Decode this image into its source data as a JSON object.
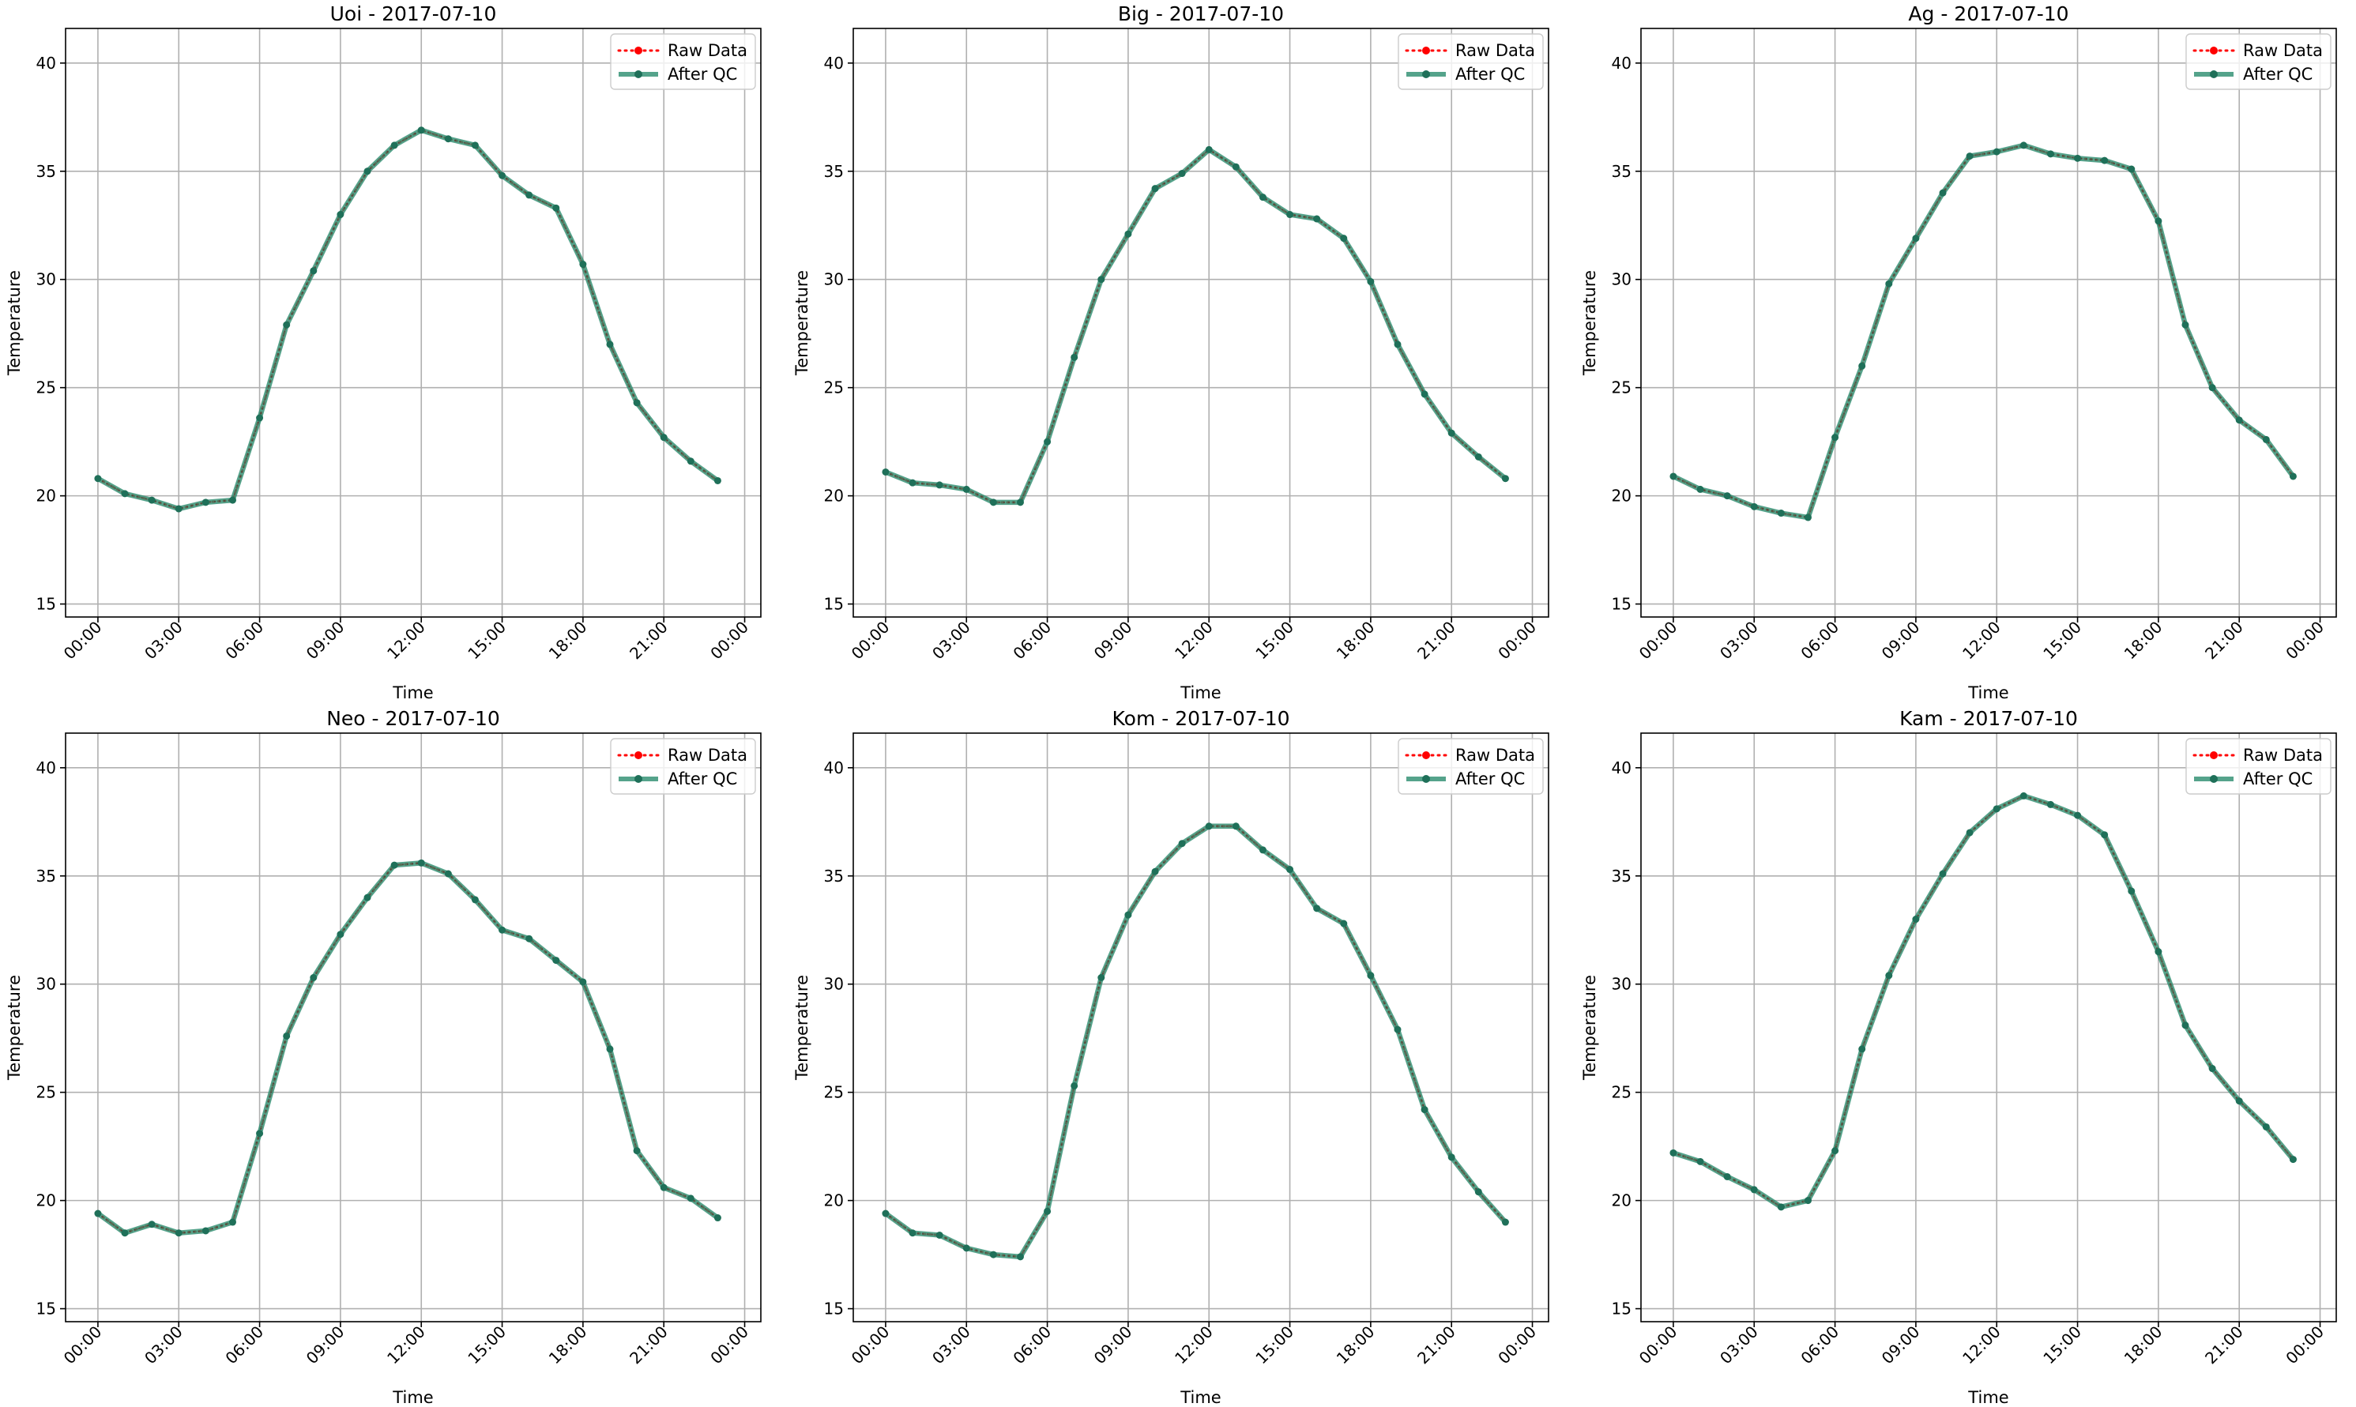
{
  "chart_data": [
    {
      "type": "line",
      "title": "Uoi - 2017-07-10",
      "xlabel": "Time",
      "ylabel": "Temperature",
      "x_tick_labels": [
        "00:00",
        "03:00",
        "06:00",
        "09:00",
        "12:00",
        "15:00",
        "18:00",
        "21:00",
        "00:00"
      ],
      "y_ticks": [
        15,
        20,
        25,
        30,
        35,
        40
      ],
      "ylim": [
        14.4,
        41.6
      ],
      "grid": true,
      "legend_position": "top-right",
      "x": [
        "00:00",
        "01:00",
        "02:00",
        "03:00",
        "04:00",
        "05:00",
        "06:00",
        "07:00",
        "08:00",
        "09:00",
        "10:00",
        "11:00",
        "12:00",
        "13:00",
        "14:00",
        "15:00",
        "16:00",
        "17:00",
        "18:00",
        "19:00",
        "20:00",
        "21:00",
        "22:00",
        "23:00"
      ],
      "series": [
        {
          "name": "Raw Data",
          "color": "#ff0000",
          "values": [
            20.8,
            20.1,
            19.8,
            19.4,
            19.7,
            19.8,
            23.6,
            27.9,
            30.4,
            33.0,
            35.0,
            36.2,
            36.9,
            36.5,
            36.2,
            34.8,
            33.9,
            33.3,
            30.7,
            27.0,
            24.3,
            22.7,
            21.6,
            20.7
          ]
        },
        {
          "name": "After QC",
          "color": "#2b8c6e",
          "values": [
            20.8,
            20.1,
            19.8,
            19.4,
            19.7,
            19.8,
            23.6,
            27.9,
            30.4,
            33.0,
            35.0,
            36.2,
            36.9,
            36.5,
            36.2,
            34.8,
            33.9,
            33.3,
            30.7,
            27.0,
            24.3,
            22.7,
            21.6,
            20.7
          ]
        }
      ]
    },
    {
      "type": "line",
      "title": "Big - 2017-07-10",
      "xlabel": "Time",
      "ylabel": "Temperature",
      "x_tick_labels": [
        "00:00",
        "03:00",
        "06:00",
        "09:00",
        "12:00",
        "15:00",
        "18:00",
        "21:00",
        "00:00"
      ],
      "y_ticks": [
        15,
        20,
        25,
        30,
        35,
        40
      ],
      "ylim": [
        14.4,
        41.6
      ],
      "grid": true,
      "legend_position": "top-right",
      "x": [
        "00:00",
        "01:00",
        "02:00",
        "03:00",
        "04:00",
        "05:00",
        "06:00",
        "07:00",
        "08:00",
        "09:00",
        "10:00",
        "11:00",
        "12:00",
        "13:00",
        "14:00",
        "15:00",
        "16:00",
        "17:00",
        "18:00",
        "19:00",
        "20:00",
        "21:00",
        "22:00",
        "23:00"
      ],
      "series": [
        {
          "name": "Raw Data",
          "color": "#ff0000",
          "values": [
            21.1,
            20.6,
            20.5,
            20.3,
            19.7,
            19.7,
            22.5,
            26.4,
            30.0,
            32.1,
            34.2,
            34.9,
            36.0,
            35.2,
            33.8,
            33.0,
            32.8,
            31.9,
            29.9,
            27.0,
            24.7,
            22.9,
            21.8,
            20.8
          ]
        },
        {
          "name": "After QC",
          "color": "#2b8c6e",
          "values": [
            21.1,
            20.6,
            20.5,
            20.3,
            19.7,
            19.7,
            22.5,
            26.4,
            30.0,
            32.1,
            34.2,
            34.9,
            36.0,
            35.2,
            33.8,
            33.0,
            32.8,
            31.9,
            29.9,
            27.0,
            24.7,
            22.9,
            21.8,
            20.8
          ]
        }
      ]
    },
    {
      "type": "line",
      "title": "Ag - 2017-07-10",
      "xlabel": "Time",
      "ylabel": "Temperature",
      "x_tick_labels": [
        "00:00",
        "03:00",
        "06:00",
        "09:00",
        "12:00",
        "15:00",
        "18:00",
        "21:00",
        "00:00"
      ],
      "y_ticks": [
        15,
        20,
        25,
        30,
        35,
        40
      ],
      "ylim": [
        14.4,
        41.6
      ],
      "grid": true,
      "legend_position": "top-right",
      "x": [
        "00:00",
        "01:00",
        "02:00",
        "03:00",
        "04:00",
        "05:00",
        "06:00",
        "07:00",
        "08:00",
        "09:00",
        "10:00",
        "11:00",
        "12:00",
        "13:00",
        "14:00",
        "15:00",
        "16:00",
        "17:00",
        "18:00",
        "19:00",
        "20:00",
        "21:00",
        "22:00",
        "23:00"
      ],
      "series": [
        {
          "name": "Raw Data",
          "color": "#ff0000",
          "values": [
            20.9,
            20.3,
            20.0,
            19.5,
            19.2,
            19.0,
            22.7,
            26.0,
            29.8,
            31.9,
            34.0,
            35.7,
            35.9,
            36.2,
            35.8,
            35.6,
            35.5,
            35.1,
            32.7,
            27.9,
            25.0,
            23.5,
            22.6,
            20.9
          ]
        },
        {
          "name": "After QC",
          "color": "#2b8c6e",
          "values": [
            20.9,
            20.3,
            20.0,
            19.5,
            19.2,
            19.0,
            22.7,
            26.0,
            29.8,
            31.9,
            34.0,
            35.7,
            35.9,
            36.2,
            35.8,
            35.6,
            35.5,
            35.1,
            32.7,
            27.9,
            25.0,
            23.5,
            22.6,
            20.9
          ]
        }
      ]
    },
    {
      "type": "line",
      "title": "Neo - 2017-07-10",
      "xlabel": "Time",
      "ylabel": "Temperature",
      "x_tick_labels": [
        "00:00",
        "03:00",
        "06:00",
        "09:00",
        "12:00",
        "15:00",
        "18:00",
        "21:00",
        "00:00"
      ],
      "y_ticks": [
        15,
        20,
        25,
        30,
        35,
        40
      ],
      "ylim": [
        14.4,
        41.6
      ],
      "grid": true,
      "legend_position": "top-right",
      "x": [
        "00:00",
        "01:00",
        "02:00",
        "03:00",
        "04:00",
        "05:00",
        "06:00",
        "07:00",
        "08:00",
        "09:00",
        "10:00",
        "11:00",
        "12:00",
        "13:00",
        "14:00",
        "15:00",
        "16:00",
        "17:00",
        "18:00",
        "19:00",
        "20:00",
        "21:00",
        "22:00",
        "23:00"
      ],
      "series": [
        {
          "name": "Raw Data",
          "color": "#ff0000",
          "values": [
            19.4,
            18.5,
            18.9,
            18.5,
            18.6,
            19.0,
            23.1,
            27.6,
            30.3,
            32.3,
            34.0,
            35.5,
            35.6,
            35.1,
            33.9,
            32.5,
            32.1,
            31.1,
            30.1,
            27.0,
            22.3,
            20.6,
            20.1,
            19.2
          ]
        },
        {
          "name": "After QC",
          "color": "#2b8c6e",
          "values": [
            19.4,
            18.5,
            18.9,
            18.5,
            18.6,
            19.0,
            23.1,
            27.6,
            30.3,
            32.3,
            34.0,
            35.5,
            35.6,
            35.1,
            33.9,
            32.5,
            32.1,
            31.1,
            30.1,
            27.0,
            22.3,
            20.6,
            20.1,
            19.2
          ]
        }
      ]
    },
    {
      "type": "line",
      "title": "Kom - 2017-07-10",
      "xlabel": "Time",
      "ylabel": "Temperature",
      "x_tick_labels": [
        "00:00",
        "03:00",
        "06:00",
        "09:00",
        "12:00",
        "15:00",
        "18:00",
        "21:00",
        "00:00"
      ],
      "y_ticks": [
        15,
        20,
        25,
        30,
        35,
        40
      ],
      "ylim": [
        14.4,
        41.6
      ],
      "grid": true,
      "legend_position": "top-right",
      "x": [
        "00:00",
        "01:00",
        "02:00",
        "03:00",
        "04:00",
        "05:00",
        "06:00",
        "07:00",
        "08:00",
        "09:00",
        "10:00",
        "11:00",
        "12:00",
        "13:00",
        "14:00",
        "15:00",
        "16:00",
        "17:00",
        "18:00",
        "19:00",
        "20:00",
        "21:00",
        "22:00",
        "23:00"
      ],
      "series": [
        {
          "name": "Raw Data",
          "color": "#ff0000",
          "values": [
            19.4,
            18.5,
            18.4,
            17.8,
            17.5,
            17.4,
            19.5,
            25.3,
            30.3,
            33.2,
            35.2,
            36.5,
            37.3,
            37.3,
            36.2,
            35.3,
            33.5,
            32.8,
            30.4,
            27.9,
            24.2,
            22.0,
            20.4,
            19.0
          ]
        },
        {
          "name": "After QC",
          "color": "#2b8c6e",
          "values": [
            19.4,
            18.5,
            18.4,
            17.8,
            17.5,
            17.4,
            19.5,
            25.3,
            30.3,
            33.2,
            35.2,
            36.5,
            37.3,
            37.3,
            36.2,
            35.3,
            33.5,
            32.8,
            30.4,
            27.9,
            24.2,
            22.0,
            20.4,
            19.0
          ]
        }
      ]
    },
    {
      "type": "line",
      "title": "Kam - 2017-07-10",
      "xlabel": "Time",
      "ylabel": "Temperature",
      "x_tick_labels": [
        "00:00",
        "03:00",
        "06:00",
        "09:00",
        "12:00",
        "15:00",
        "18:00",
        "21:00",
        "00:00"
      ],
      "y_ticks": [
        15,
        20,
        25,
        30,
        35,
        40
      ],
      "ylim": [
        14.4,
        41.6
      ],
      "grid": true,
      "legend_position": "top-right",
      "x": [
        "00:00",
        "01:00",
        "02:00",
        "03:00",
        "04:00",
        "05:00",
        "06:00",
        "07:00",
        "08:00",
        "09:00",
        "10:00",
        "11:00",
        "12:00",
        "13:00",
        "14:00",
        "15:00",
        "16:00",
        "17:00",
        "18:00",
        "19:00",
        "20:00",
        "21:00",
        "22:00",
        "23:00"
      ],
      "series": [
        {
          "name": "Raw Data",
          "color": "#ff0000",
          "values": [
            22.2,
            21.8,
            21.1,
            20.5,
            19.7,
            20.0,
            22.3,
            27.0,
            30.4,
            33.0,
            35.1,
            37.0,
            38.1,
            38.7,
            38.3,
            37.8,
            36.9,
            34.3,
            31.5,
            28.1,
            26.1,
            24.6,
            23.4,
            21.9
          ]
        },
        {
          "name": "After QC",
          "color": "#2b8c6e",
          "values": [
            22.2,
            21.8,
            21.1,
            20.5,
            19.7,
            20.0,
            22.3,
            27.0,
            30.4,
            33.0,
            35.1,
            37.0,
            38.1,
            38.7,
            38.3,
            37.8,
            36.9,
            34.3,
            31.5,
            28.1,
            26.1,
            24.6,
            23.4,
            21.9
          ]
        }
      ]
    }
  ]
}
